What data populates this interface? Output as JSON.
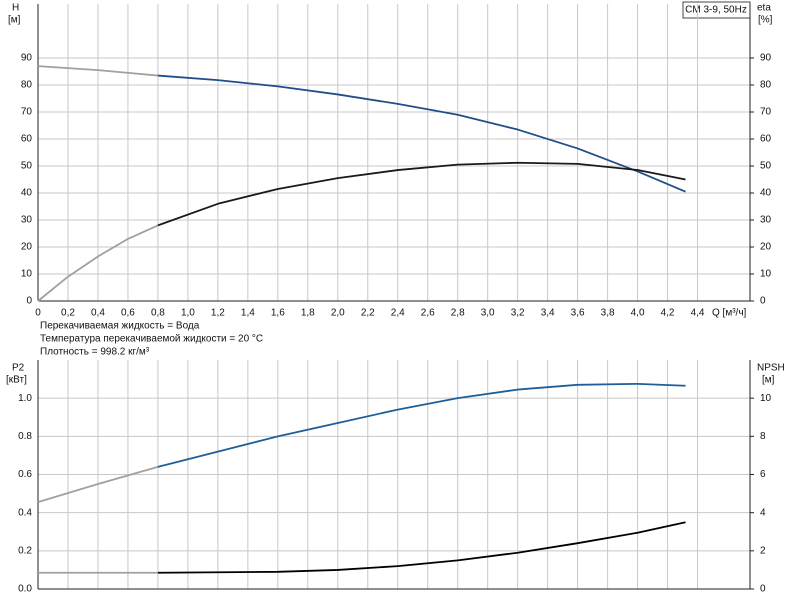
{
  "chart_data": [
    {
      "type": "line",
      "label_box": "CM 3-9, 50Hz",
      "y_label": "H",
      "y_unit": "[м]",
      "y2_label": "eta",
      "y2_unit": "[%]",
      "x_label": "Q [м³/ч]",
      "notes": [
        "Перекачиваемая жидкость = Вода",
        "Температура перекачиваемой жидкости = 20 °C",
        "Плотность = 998.2 кг/м³"
      ],
      "xlim": [
        0,
        4.75
      ],
      "xticks": [
        0,
        {
          "value": 0.2,
          "label": "0,2"
        },
        {
          "value": 0.4,
          "label": "0,4"
        },
        {
          "value": 0.6,
          "label": "0,6"
        },
        {
          "value": 0.8,
          "label": "0,8"
        },
        {
          "value": 1.0,
          "label": "1,0"
        },
        {
          "value": 1.2,
          "label": "1,2"
        },
        {
          "value": 1.4,
          "label": "1,4"
        },
        {
          "value": 1.6,
          "label": "1,6"
        },
        {
          "value": 1.8,
          "label": "1,8"
        },
        {
          "value": 2.0,
          "label": "2,0"
        },
        {
          "value": 2.2,
          "label": "2,2"
        },
        {
          "value": 2.4,
          "label": "2,4"
        },
        {
          "value": 2.6,
          "label": "2,6"
        },
        {
          "value": 2.8,
          "label": "2,8"
        },
        {
          "value": 3.0,
          "label": "3,0"
        },
        {
          "value": 3.2,
          "label": "3,2"
        },
        {
          "value": 3.4,
          "label": "3,4"
        },
        {
          "value": 3.6,
          "label": "3,6"
        },
        {
          "value": 3.8,
          "label": "3,8"
        },
        {
          "value": 4.0,
          "label": "4,0"
        },
        {
          "value": 4.2,
          "label": "4,2"
        },
        {
          "value": 4.4,
          "label": "4,4"
        }
      ],
      "ylim": [
        0,
        110
      ],
      "yticks": [
        0,
        10,
        20,
        30,
        40,
        50,
        60,
        70,
        80,
        90
      ],
      "y2lim": [
        0,
        110
      ],
      "y2ticks": [
        0,
        10,
        20,
        30,
        40,
        50,
        60,
        70,
        80,
        90
      ],
      "grid": true,
      "series": [
        {
          "color": "#a0a0a0",
          "x": [
            0,
            0.4,
            0.8
          ],
          "values": [
            87,
            85.5,
            83.5
          ]
        },
        {
          "color": "#1f4e8c",
          "x": [
            0.8,
            1.2,
            1.6,
            2.0,
            2.4,
            2.8,
            3.2,
            3.6,
            4.0,
            4.32
          ],
          "values": [
            83.5,
            81.8,
            79.5,
            76.5,
            73,
            69,
            63.5,
            56.5,
            48,
            40.5
          ]
        },
        {
          "color": "#a0a0a0",
          "axis": "y2",
          "x": [
            0,
            0.2,
            0.4,
            0.6,
            0.8
          ],
          "values": [
            0,
            9,
            16.5,
            23,
            28
          ]
        },
        {
          "color": "#1a1a1a",
          "axis": "y2",
          "x": [
            0.8,
            1.2,
            1.6,
            2.0,
            2.4,
            2.8,
            3.2,
            3.6,
            4.0,
            4.32
          ],
          "values": [
            28,
            36,
            41.5,
            45.5,
            48.5,
            50.5,
            51.2,
            50.8,
            48.5,
            45
          ]
        }
      ]
    },
    {
      "type": "line",
      "y_label": "P2",
      "y_unit": "[кВт]",
      "y2_label": "NPSH",
      "y2_unit": "[м]",
      "xlim": [
        0,
        4.75
      ],
      "xticks": [
        0,
        0.2,
        0.4,
        0.6,
        0.8,
        1.0,
        1.2,
        1.4,
        1.6,
        1.8,
        2.0,
        2.2,
        2.4,
        2.6,
        2.8,
        3.0,
        3.2,
        3.4,
        3.6,
        3.8,
        4.0,
        4.2,
        4.4
      ],
      "ylim": [
        0,
        1.2
      ],
      "yticks": [
        {
          "value": 0,
          "label": "0.0"
        },
        0.2,
        0.4,
        0.6,
        0.8,
        {
          "value": 1,
          "label": "1.0"
        }
      ],
      "y2lim": [
        0,
        12
      ],
      "y2ticks": [
        0,
        2,
        4,
        6,
        8,
        10
      ],
      "grid": true,
      "series": [
        {
          "color": "#a0a0a0",
          "x": [
            0,
            0.4,
            0.8
          ],
          "values": [
            0.455,
            0.55,
            0.64
          ]
        },
        {
          "color": "#1f5f99",
          "x": [
            0.8,
            1.2,
            1.6,
            2.0,
            2.4,
            2.8,
            3.2,
            3.6,
            4.0,
            4.32
          ],
          "values": [
            0.64,
            0.72,
            0.8,
            0.87,
            0.94,
            1.0,
            1.045,
            1.07,
            1.075,
            1.065
          ]
        },
        {
          "color": "#a0a0a0",
          "axis": "y2",
          "x": [
            0,
            0.8
          ],
          "values": [
            0.85,
            0.85
          ]
        },
        {
          "color": "#000000",
          "axis": "y2",
          "x": [
            0.8,
            1.6,
            2.0,
            2.4,
            2.8,
            3.2,
            3.6,
            4.0,
            4.32
          ],
          "values": [
            0.85,
            0.9,
            1.0,
            1.2,
            1.5,
            1.9,
            2.4,
            2.95,
            3.5
          ]
        }
      ]
    }
  ]
}
